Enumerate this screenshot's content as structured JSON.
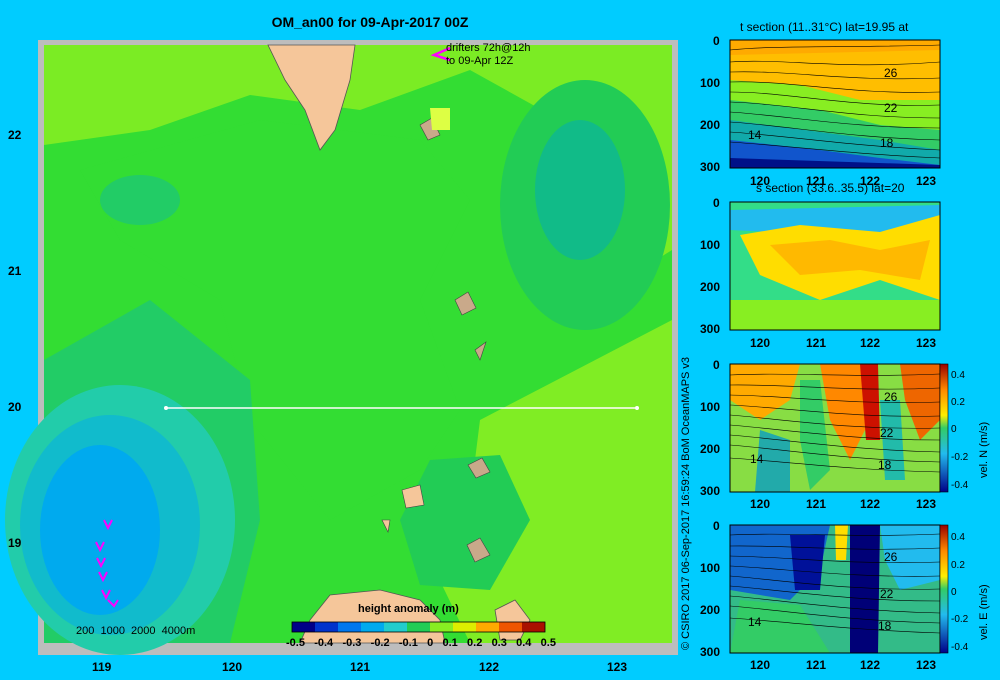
{
  "title": "OM_an00 for 09-Apr-2017 00Z",
  "map": {
    "lat_ticks": [
      "22",
      "21",
      "20",
      "19"
    ],
    "lon_ticks": [
      "119",
      "120",
      "121",
      "122",
      "123"
    ],
    "drifters_line1": "drifters 72h@12h",
    "drifters_line2": "to 09-Apr 12Z",
    "depth_legend": "200  1000  2000  4000m",
    "colorbar_title": "height anomaly (m)",
    "colorbar_ticks": [
      "-0.5",
      "-0.4",
      "-0.3",
      "-0.2",
      "-0.1",
      "0",
      "0.1",
      "0.2",
      "0.3",
      "0.4",
      "0.5"
    ],
    "colors": {
      "land": "#f5c69a",
      "mid": "#33dd33",
      "light": "#88ee22",
      "dark": "#11bb55",
      "blue": "#00aaee",
      "cyan": "#22cccc",
      "drifter": "#ff00ff"
    }
  },
  "credit": "© CSIRO 2017   06-Sep-2017 16:59:24 BoM OceanMAPS v3",
  "panels": {
    "t_title": "t section (11..31°C) lat=19.95 at",
    "s_title": "s section (33.6..35.5) lat=20",
    "vn_label": "vel. N (m/s)",
    "ve_label": "vel. E (m/s)",
    "depth_ticks": [
      "0",
      "100",
      "200",
      "300"
    ],
    "lon_ticks": [
      "120",
      "121",
      "122",
      "123"
    ],
    "contour_labels": [
      "26",
      "22",
      "18",
      "14"
    ],
    "vel_ticks": [
      "0.4",
      "0.2",
      "0",
      "-0.2",
      "-0.4"
    ]
  }
}
